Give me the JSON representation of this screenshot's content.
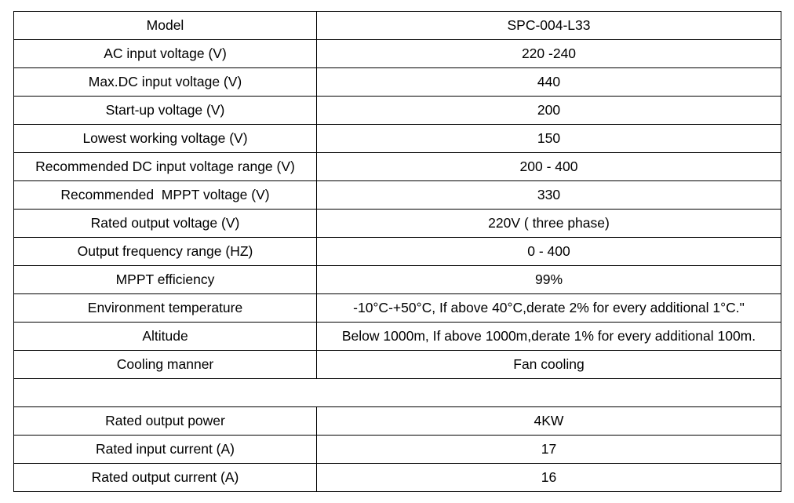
{
  "table": {
    "sections": [
      [
        [
          "Model",
          "SPC-004-L33"
        ],
        [
          "AC input voltage (V)",
          "220 -240"
        ],
        [
          "Max.DC input voltage (V)",
          "440"
        ],
        [
          "Start-up voltage (V)",
          "200"
        ],
        [
          "Lowest working voltage (V)",
          "150"
        ],
        [
          "Recommended DC input voltage range (V)",
          "200 - 400"
        ],
        [
          "Recommended  MPPT voltage (V)",
          "330"
        ],
        [
          "Rated output voltage (V)",
          "220V ( three phase)"
        ],
        [
          "Output frequency range (HZ)",
          "0 - 400"
        ],
        [
          "MPPT efficiency",
          "99%"
        ],
        [
          "Environment temperature",
          "-10°C-+50°C, If above 40°C,derate 2% for every additional 1°C.\""
        ],
        [
          "Altitude",
          "Below 1000m, If above 1000m,derate 1% for every additional 100m."
        ],
        [
          "Cooling manner",
          "Fan cooling"
        ]
      ],
      [
        [
          "Rated output power",
          "4KW"
        ],
        [
          "Rated input current (A)",
          "17"
        ],
        [
          "Rated output current (A)",
          "16"
        ]
      ]
    ]
  }
}
